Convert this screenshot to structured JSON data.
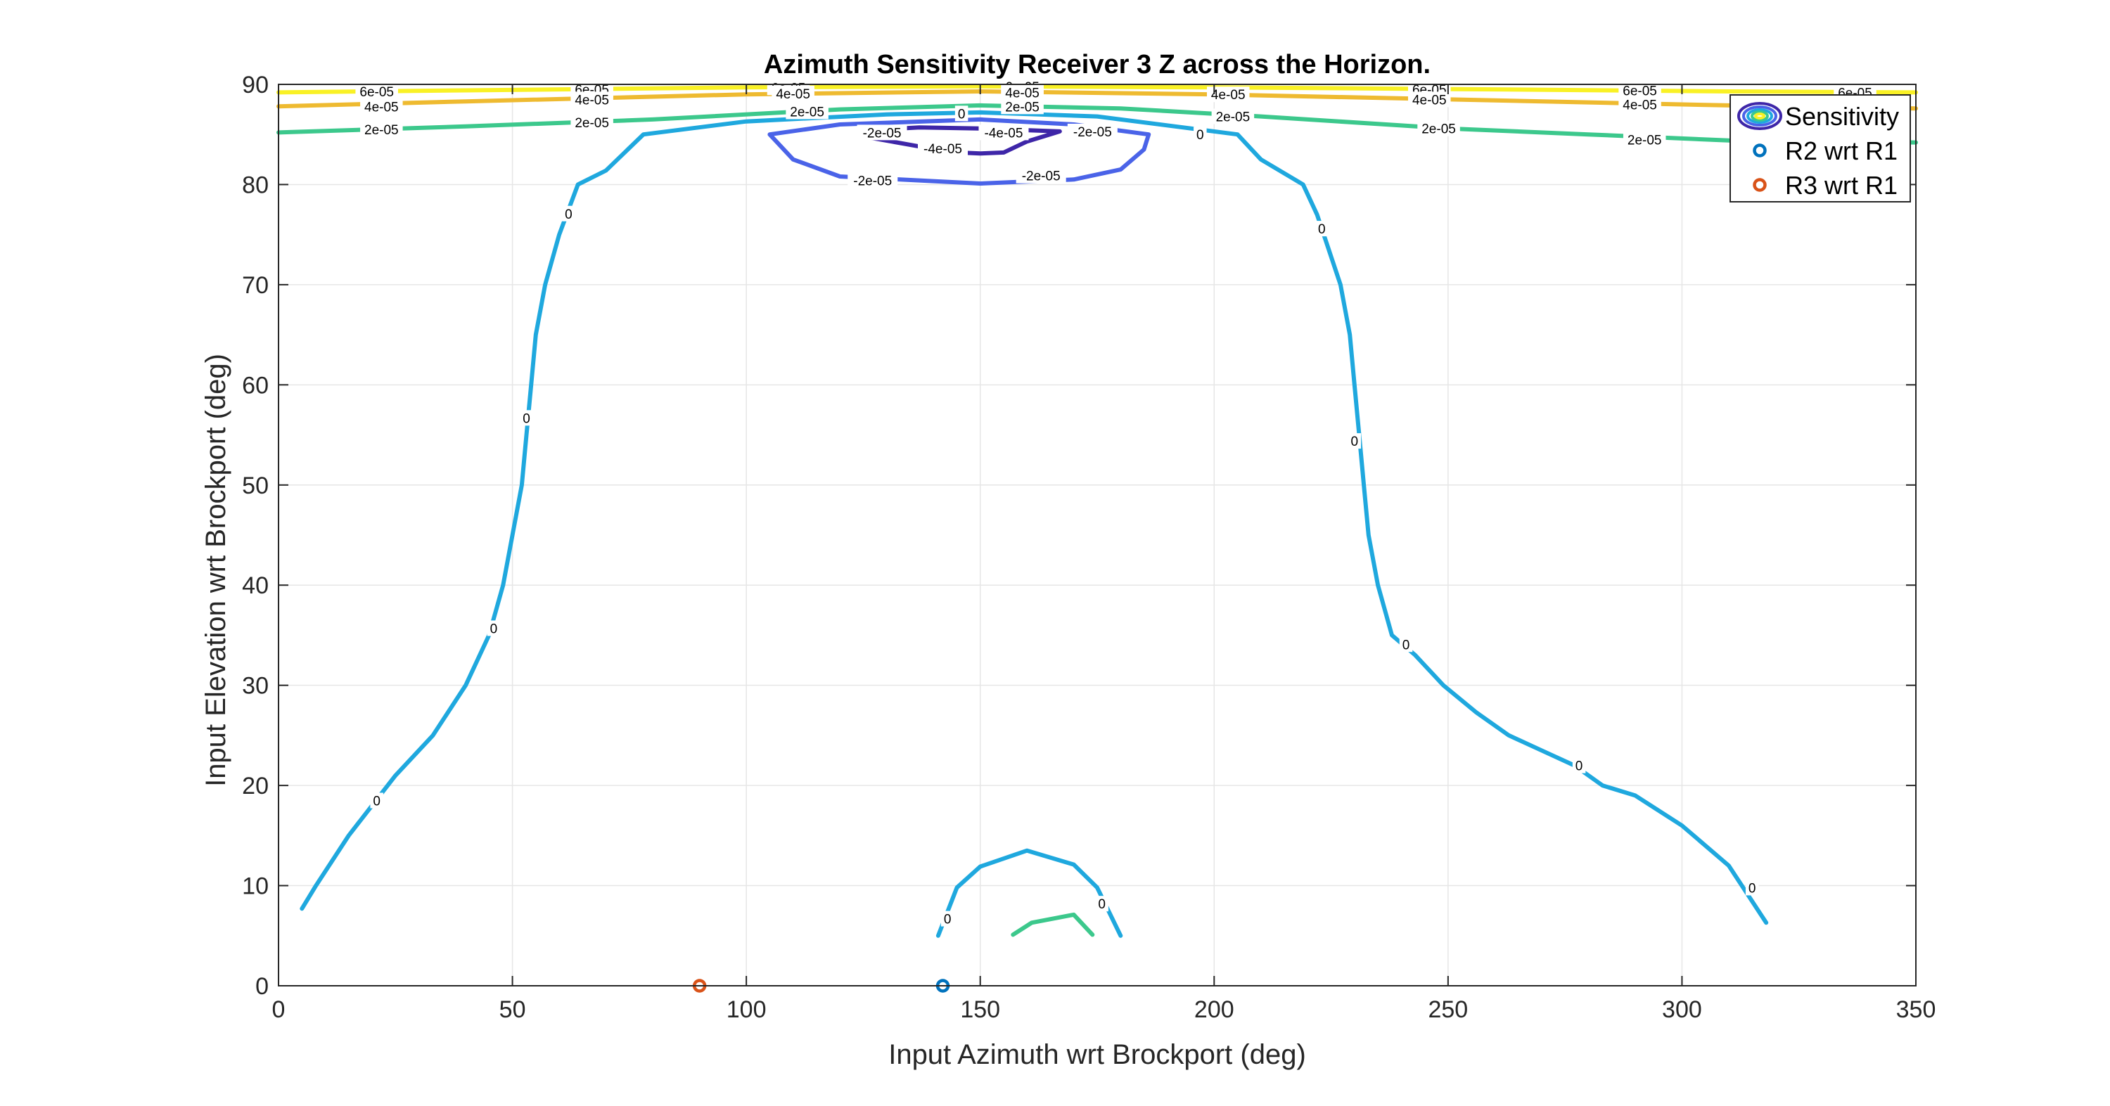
{
  "chart_data": {
    "type": "contour",
    "title": "Azimuth Sensitivity Receiver 3 Z across the Horizon.",
    "xlabel": "Input Azimuth wrt Brockport (deg)",
    "ylabel": "Input Elevation wrt Brockport (deg)",
    "xlim": [
      0,
      350
    ],
    "ylim": [
      0,
      90
    ],
    "xticks": [
      0,
      50,
      100,
      150,
      200,
      250,
      300,
      350
    ],
    "yticks": [
      0,
      10,
      20,
      30,
      40,
      50,
      60,
      70,
      80,
      90
    ],
    "grid": true,
    "legend_position": "top-right",
    "legend": [
      {
        "label": "Sensitivity",
        "kind": "contour-icon"
      },
      {
        "label": "R2 wrt R1",
        "kind": "marker",
        "color": "#0072BD"
      },
      {
        "label": "R3 wrt R1",
        "kind": "marker",
        "color": "#D95319"
      }
    ],
    "level_colors": {
      "-4e-05": "#3E26A8",
      "-2e-05": "#4A63E8",
      "0": "#1FA8DE",
      "2e-05": "#3CC88C",
      "4e-05": "#EEBA30",
      "6e-05": "#F9F125"
    },
    "contours": [
      {
        "level": "6e-05",
        "label": "6e-05",
        "points": [
          [
            0,
            89.2
          ],
          [
            40,
            89.4
          ],
          [
            100,
            89.7
          ],
          [
            150,
            89.8
          ],
          [
            200,
            89.7
          ],
          [
            260,
            89.5
          ],
          [
            310,
            89.3
          ],
          [
            350,
            89.2
          ]
        ],
        "labels_at": [
          [
            21,
            89.3
          ],
          [
            67,
            89.5
          ],
          [
            109,
            89.7
          ],
          [
            159,
            89.8
          ],
          [
            246,
            89.5
          ],
          [
            291,
            89.4
          ],
          [
            337,
            89.2
          ]
        ]
      },
      {
        "level": "4e-05",
        "label": "4e-05",
        "points": [
          [
            0,
            87.8
          ],
          [
            40,
            88.3
          ],
          [
            100,
            89.0
          ],
          [
            150,
            89.3
          ],
          [
            200,
            89.0
          ],
          [
            260,
            88.4
          ],
          [
            310,
            87.9
          ],
          [
            350,
            87.6
          ]
        ],
        "labels_at": [
          [
            22,
            87.8
          ],
          [
            67,
            88.5
          ],
          [
            110,
            89.1
          ],
          [
            159,
            89.2
          ],
          [
            203,
            89.0
          ],
          [
            246,
            88.5
          ],
          [
            291,
            88.0
          ]
        ]
      },
      {
        "level": "2e-05",
        "label": "2e-05",
        "points": [
          [
            0,
            85.2
          ],
          [
            40,
            85.8
          ],
          [
            80,
            86.5
          ],
          [
            120,
            87.5
          ],
          [
            150,
            87.9
          ],
          [
            180,
            87.6
          ],
          [
            210,
            86.8
          ],
          [
            250,
            85.6
          ],
          [
            280,
            85.0
          ],
          [
            310,
            84.4
          ],
          [
            350,
            84.2
          ]
        ],
        "labels_at": [
          [
            22,
            85.5
          ],
          [
            67,
            86.2
          ],
          [
            113,
            87.3
          ],
          [
            159,
            87.8
          ],
          [
            204,
            86.8
          ],
          [
            248,
            85.6
          ],
          [
            292,
            84.5
          ]
        ]
      },
      {
        "level": "0",
        "label": "0",
        "points": [
          [
            5,
            7.7
          ],
          [
            8,
            10
          ],
          [
            15,
            15
          ],
          [
            20,
            18
          ],
          [
            25,
            21
          ],
          [
            33,
            25
          ],
          [
            40,
            30
          ],
          [
            45,
            35
          ],
          [
            48,
            40
          ],
          [
            50,
            45
          ],
          [
            52,
            50
          ],
          [
            53,
            55
          ],
          [
            54,
            60
          ],
          [
            55,
            65
          ],
          [
            57,
            70
          ],
          [
            60,
            75
          ],
          [
            64,
            80
          ],
          [
            70,
            81.4
          ],
          [
            78,
            85
          ],
          [
            100,
            86.3
          ],
          [
            130,
            87
          ],
          [
            150,
            87.2
          ],
          [
            175,
            86.8
          ],
          [
            205,
            85
          ],
          [
            210,
            82.5
          ],
          [
            219,
            80
          ],
          [
            222,
            77
          ],
          [
            227,
            70
          ],
          [
            229,
            65
          ],
          [
            230,
            60
          ],
          [
            231,
            55
          ],
          [
            232,
            50
          ],
          [
            233,
            45
          ],
          [
            235,
            40
          ],
          [
            238,
            35
          ],
          [
            243,
            33
          ],
          [
            249,
            30
          ],
          [
            256,
            27.3
          ],
          [
            263,
            25
          ],
          [
            270,
            23.5
          ],
          [
            277,
            22
          ],
          [
            283,
            20
          ],
          [
            290,
            19
          ],
          [
            300,
            16
          ],
          [
            310,
            12
          ],
          [
            318,
            6.3
          ]
        ],
        "labels_at": [
          [
            21,
            18.5
          ],
          [
            46,
            35.7
          ],
          [
            53,
            56.7
          ],
          [
            62,
            77.1
          ],
          [
            146,
            87.1
          ],
          [
            197,
            85
          ],
          [
            223,
            75.6
          ],
          [
            230,
            54.4
          ],
          [
            241,
            34.1
          ],
          [
            278,
            22
          ],
          [
            315,
            9.8
          ]
        ]
      },
      {
        "level": "0",
        "label": "0",
        "points": [
          [
            141,
            5
          ],
          [
            145,
            9.8
          ],
          [
            150,
            11.9
          ],
          [
            160,
            13.5
          ],
          [
            170,
            12.1
          ],
          [
            175,
            9.8
          ],
          [
            180,
            5
          ]
        ],
        "labels_at": [
          [
            143,
            6.7
          ],
          [
            176,
            8.2
          ]
        ]
      },
      {
        "level": "2e-05",
        "label": "",
        "points": [
          [
            157,
            5.1
          ],
          [
            161,
            6.3
          ],
          [
            170,
            7.1
          ],
          [
            174,
            5.1
          ]
        ],
        "labels_at": []
      },
      {
        "level": "-2e-05",
        "label": "-2e-05",
        "points": [
          [
            105,
            85
          ],
          [
            110,
            82.5
          ],
          [
            120,
            80.8
          ],
          [
            150,
            80.1
          ],
          [
            170,
            80.5
          ],
          [
            180,
            81.5
          ],
          [
            185,
            83.5
          ],
          [
            186,
            85
          ],
          [
            170,
            86
          ],
          [
            150,
            86.5
          ],
          [
            120,
            86
          ],
          [
            105,
            85
          ]
        ],
        "labels_at": [
          [
            129,
            85.2
          ],
          [
            174,
            85.3
          ],
          [
            127,
            80.4
          ],
          [
            163,
            80.9
          ]
        ]
      },
      {
        "level": "-4e-05",
        "label": "-4e-05",
        "points": [
          [
            125,
            84.8
          ],
          [
            137,
            83.8
          ],
          [
            140,
            83.3
          ],
          [
            150,
            83.1
          ],
          [
            155,
            83.2
          ],
          [
            160,
            84.3
          ],
          [
            167,
            85.3
          ],
          [
            150,
            85.6
          ],
          [
            137,
            85.7
          ],
          [
            125,
            85.4
          ],
          [
            125,
            84.8
          ]
        ],
        "labels_at": [
          [
            155,
            85.2
          ],
          [
            142,
            83.6
          ]
        ]
      }
    ],
    "points": [
      {
        "name": "R2 wrt R1",
        "x": 142,
        "y": 0,
        "color": "#0072BD"
      },
      {
        "name": "R3 wrt R1",
        "x": 90,
        "y": 0,
        "color": "#D95319"
      }
    ]
  }
}
